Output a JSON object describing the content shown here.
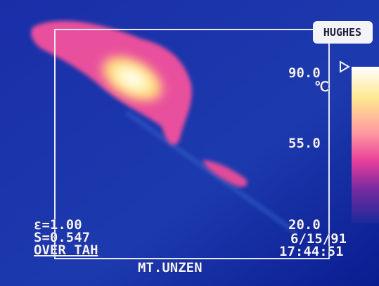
{
  "brand": "HUGHES",
  "scale": {
    "top": "90.0",
    "unit": "℃",
    "middle": "55.0",
    "bottom": "20.0"
  },
  "readout": {
    "emissivity": "ε=1.00",
    "span": "S=0.547",
    "mode": "OVER TAH"
  },
  "timestamp": {
    "date": "6/15/91",
    "time": "17:44:51"
  },
  "location": "MT.UNZEN"
}
